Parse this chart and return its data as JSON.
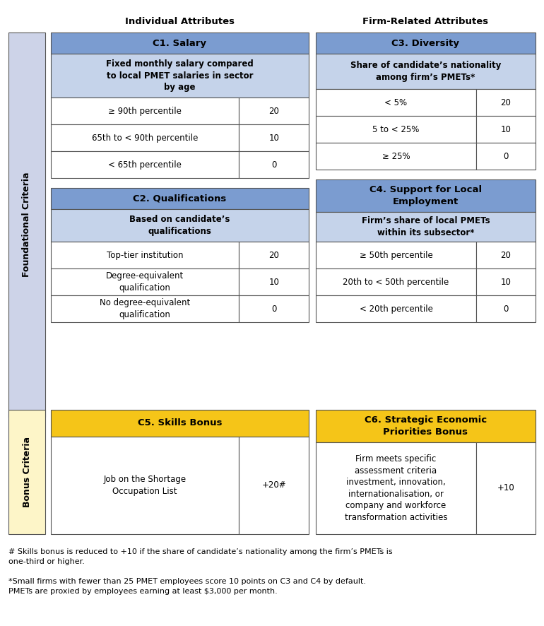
{
  "title_individual": "Individual Attributes",
  "title_firm": "Firm-Related Attributes",
  "foundational_label": "Foundational Criteria",
  "bonus_label": "Bonus Criteria",
  "header_blue": "#7B9CD0",
  "header_blue_light": "#C5D3EA",
  "header_yellow": "#F5C518",
  "bg_lavender": "#CDD3E8",
  "bg_yellow_light": "#FDF5C8",
  "bg_white": "#FFFFFF",
  "border_color": "#555555",
  "footnote1": "# Skills bonus is reduced to +10 if the share of candidate’s nationality among the firm’s PMETs is\none-third or higher.",
  "footnote2": "*Small firms with fewer than 25 PMET employees score 10 points on C3 and C4 by default.\nPMETs are proxied by employees earning at least $3,000 per month.",
  "sections": {
    "c1": {
      "header": "C1. Salary",
      "subheader": "Fixed monthly salary compared\nto local PMET salaries in sector\nby age",
      "rows": [
        [
          "≥ 90th percentile",
          "20"
        ],
        [
          "65th to < 90th percentile",
          "10"
        ],
        [
          "< 65th percentile",
          "0"
        ]
      ]
    },
    "c2": {
      "header": "C2. Qualifications",
      "subheader": "Based on candidate’s\nqualifications",
      "rows": [
        [
          "Top-tier institution",
          "20"
        ],
        [
          "Degree-equivalent\nqualification",
          "10"
        ],
        [
          "No degree-equivalent\nqualification",
          "0"
        ]
      ]
    },
    "c3": {
      "header": "C3. Diversity",
      "subheader": "Share of candidate’s nationality\namong firm’s PMETs*",
      "rows": [
        [
          "< 5%",
          "20"
        ],
        [
          "5 to < 25%",
          "10"
        ],
        [
          "≥ 25%",
          "0"
        ]
      ]
    },
    "c4": {
      "header": "C4. Support for Local\nEmployment",
      "subheader": "Firm’s share of local PMETs\nwithin its subsector*",
      "rows": [
        [
          "≥ 50th percentile",
          "20"
        ],
        [
          "20th to < 50th percentile",
          "10"
        ],
        [
          "< 20th percentile",
          "0"
        ]
      ]
    },
    "c5": {
      "header": "C5. Skills Bonus",
      "rows": [
        [
          "Job on the Shortage\nOccupation List",
          "+20#"
        ]
      ]
    },
    "c6": {
      "header": "C6. Strategic Economic\nPriorities Bonus",
      "rows": [
        [
          "Firm meets specific\nassessment criteria\ninvestment, innovation,\ninternationalisation, or\ncompany and workforce\ntransformation activities",
          "+10"
        ]
      ]
    }
  }
}
